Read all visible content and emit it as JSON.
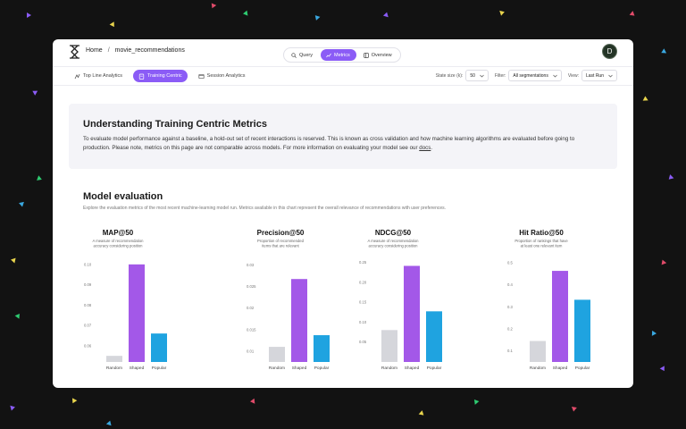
{
  "background_accents": [
    "#8b5cf6",
    "#e8d44d",
    "#e14b6a",
    "#2ecc71",
    "#3aa8e0"
  ],
  "header": {
    "breadcrumb_home": "Home",
    "breadcrumb_sep": "/",
    "breadcrumb_page": "movie_recommendations",
    "view_tabs": [
      {
        "label": "Query",
        "icon": "search-icon",
        "active": false
      },
      {
        "label": "Metrics",
        "icon": "chart-icon",
        "active": true
      },
      {
        "label": "Overview",
        "icon": "sidebar-icon",
        "active": false
      }
    ],
    "avatar_initial": "D"
  },
  "subnav": {
    "tabs": [
      {
        "label": "Top Line Analytics",
        "icon": "analytics-icon",
        "active": false
      },
      {
        "label": "Training Centric",
        "icon": "clipboard-icon",
        "active": true
      },
      {
        "label": "Session Analytics",
        "icon": "session-icon",
        "active": false
      }
    ],
    "state_size_label": "State size (k):",
    "state_size_value": "50",
    "filter_label": "Filter:",
    "filter_value": "All segmentations",
    "view_label": "View:",
    "view_value": "Last Run"
  },
  "info": {
    "title": "Understanding Training Centric Metrics",
    "body": "To evaluate model performance against a baseline, a hold-out set of recent interactions is reserved. This is known as cross validation and how machine learning algorithms are evaluated before going to production. Please note, metrics on this page are not comparable across models. For more information on evaluating your model see our",
    "link": "docs",
    "tail": "."
  },
  "evaluation": {
    "title": "Model evaluation",
    "subtitle": "Explore the evaluation metrics of the most recent machine-learning model run.  Metrics available in this chart represent the overall relevance of recommendations with user preferences."
  },
  "chart_data": [
    {
      "type": "bar",
      "title": "MAP@50",
      "subtitle": [
        "A measure of recommendation",
        "accuracy considering position"
      ],
      "categories": [
        "Random",
        "Shaped",
        "Popular"
      ],
      "values": [
        0.055,
        0.1,
        0.066
      ],
      "ylim": [
        0.052,
        0.103
      ],
      "yticks": [
        0.06,
        0.07,
        0.08,
        0.09,
        0.1
      ],
      "ytick_labels": [
        "0.06",
        "0.07",
        "0.08",
        "0.09",
        "0.10"
      ],
      "colors": [
        "#d5d6db",
        "#a358e8",
        "#1fa3e0"
      ]
    },
    {
      "type": "bar",
      "title": "Precision@50",
      "subtitle": [
        "Proportion of recommended",
        "items that are relevant"
      ],
      "categories": [
        "Random",
        "Shaped",
        "Popular"
      ],
      "values": [
        0.011,
        0.0267,
        0.0137
      ],
      "ylim": [
        0.0075,
        0.0315
      ],
      "yticks": [
        0.01,
        0.015,
        0.02,
        0.025,
        0.03
      ],
      "ytick_labels": [
        "0.01",
        "0.015",
        "0.02",
        "0.025",
        "0.03"
      ],
      "colors": [
        "#d5d6db",
        "#a358e8",
        "#1fa3e0"
      ]
    },
    {
      "type": "bar",
      "title": "NDCG@50",
      "subtitle": [
        "A measure of recommendation",
        "accuracy considering position"
      ],
      "categories": [
        "Random",
        "Shaped",
        "Popular"
      ],
      "values": [
        0.08,
        0.241,
        0.127
      ],
      "ylim": [
        0.0,
        0.26
      ],
      "yticks": [
        0.05,
        0.1,
        0.15,
        0.2,
        0.25
      ],
      "ytick_labels": [
        "0.05",
        "0.10",
        "0.15",
        "0.20",
        "0.25"
      ],
      "colors": [
        "#d5d6db",
        "#a358e8",
        "#1fa3e0"
      ]
    },
    {
      "type": "bar",
      "title": "Hit Ratio@50",
      "subtitle": [
        "Proportion of rankings that have",
        "at least one relevant item"
      ],
      "categories": [
        "Random",
        "Shaped",
        "Popular"
      ],
      "values": [
        0.145,
        0.463,
        0.332
      ],
      "ylim": [
        0.05,
        0.52
      ],
      "yticks": [
        0.1,
        0.2,
        0.3,
        0.4,
        0.5
      ],
      "ytick_labels": [
        "0.1",
        "0.2",
        "0.3",
        "0.4",
        "0.5"
      ],
      "colors": [
        "#d5d6db",
        "#a358e8",
        "#1fa3e0"
      ]
    }
  ]
}
